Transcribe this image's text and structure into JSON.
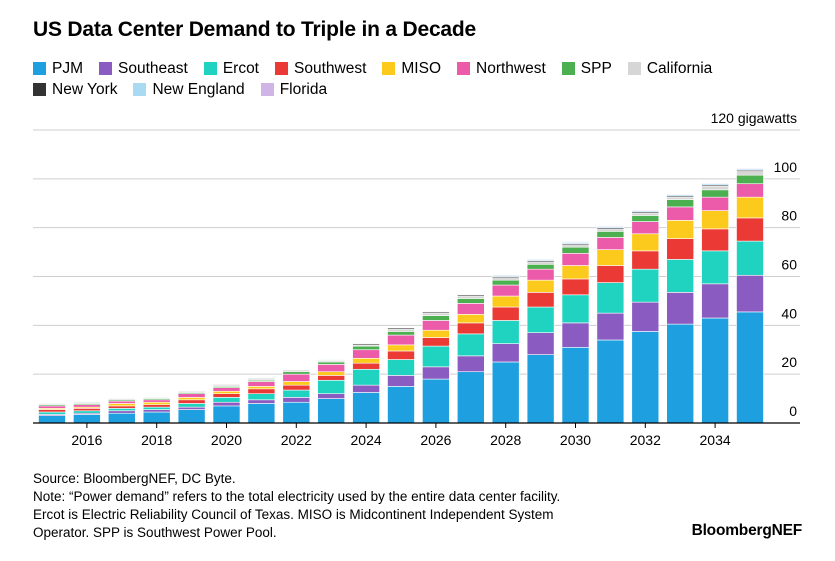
{
  "title": "US Data Center Demand to Triple in a Decade",
  "legend": {
    "items": [
      {
        "label": "PJM",
        "color": "#1e9fe0"
      },
      {
        "label": "Southeast",
        "color": "#8a5bc0"
      },
      {
        "label": "Ercot",
        "color": "#20d3c0"
      },
      {
        "label": "Southwest",
        "color": "#eb3a35"
      },
      {
        "label": "MISO",
        "color": "#fcca1c"
      },
      {
        "label": "Northwest",
        "color": "#ec5ba9"
      },
      {
        "label": "SPP",
        "color": "#4caf50"
      },
      {
        "label": "California",
        "color": "#d6d6d6"
      },
      {
        "label": "New York",
        "color": "#333333"
      },
      {
        "label": "New England",
        "color": "#a9daf2"
      },
      {
        "label": "Florida",
        "color": "#cfb5e6"
      }
    ]
  },
  "chart_data": {
    "type": "bar",
    "stacked": true,
    "unit_label": "120 gigawatts",
    "ylim": [
      0,
      120
    ],
    "yticks": [
      0,
      20,
      40,
      60,
      80,
      100
    ],
    "x": [
      2015,
      2016,
      2017,
      2018,
      2019,
      2020,
      2021,
      2022,
      2023,
      2024,
      2025,
      2026,
      2027,
      2028,
      2029,
      2030,
      2031,
      2032,
      2033,
      2034,
      2035
    ],
    "xtick_labels": [
      "2016",
      "2018",
      "2020",
      "2022",
      "2024",
      "2026",
      "2028",
      "2030",
      "2032",
      "2034"
    ],
    "series": [
      {
        "name": "PJM",
        "values": [
          3,
          3.5,
          4,
          4.5,
          5.5,
          7,
          8,
          8.5,
          10,
          12.5,
          15,
          18,
          21,
          25,
          28,
          31,
          34,
          37.5,
          40.5,
          43,
          45.5
        ]
      },
      {
        "name": "Southeast",
        "values": [
          0.5,
          0.5,
          1,
          1,
          1,
          1.5,
          1.5,
          2,
          2,
          3,
          4.5,
          5,
          6.5,
          7.5,
          9,
          10,
          11,
          12,
          13,
          14,
          15
        ]
      },
      {
        "name": "Ercot",
        "values": [
          1,
          1,
          1,
          1,
          1.5,
          2,
          2.5,
          3,
          5.5,
          6.5,
          6.5,
          8.5,
          9,
          9.5,
          10.5,
          11.5,
          12.5,
          13.5,
          13.5,
          13.5,
          14
        ]
      },
      {
        "name": "Southwest",
        "values": [
          1,
          1,
          1,
          1,
          1.5,
          1.5,
          2,
          2,
          2,
          2.5,
          3.5,
          3.5,
          4.5,
          5.5,
          6,
          6.5,
          7,
          7.5,
          8.5,
          9,
          9.5
        ]
      },
      {
        "name": "MISO",
        "values": [
          0.5,
          0.5,
          1,
          1,
          1,
          1,
          1,
          1.5,
          1.5,
          2,
          2.5,
          3,
          3.5,
          4.5,
          5,
          5.5,
          6.5,
          7,
          7.5,
          7.5,
          8.5
        ]
      },
      {
        "name": "Northwest",
        "values": [
          1,
          1,
          1,
          1,
          1.5,
          1.5,
          2,
          3,
          3,
          3.5,
          4,
          4,
          4.5,
          4.5,
          4.5,
          5,
          5,
          5,
          5.5,
          5.5,
          5.5
        ]
      },
      {
        "name": "SPP",
        "values": [
          0.5,
          0.5,
          0.5,
          0.5,
          0.5,
          0.5,
          0.5,
          1,
          1,
          1.5,
          1.5,
          2,
          2,
          2,
          2,
          2.5,
          2.5,
          2.5,
          3,
          3,
          3.5
        ]
      },
      {
        "name": "California",
        "values": [
          0.5,
          0.5,
          0.5,
          0.5,
          0.5,
          0.5,
          0.5,
          0.5,
          0.5,
          0.5,
          1,
          1,
          1,
          1,
          1,
          1,
          1,
          1,
          1,
          1.5,
          1.5
        ]
      },
      {
        "name": "New York",
        "values": [
          0.2,
          0.2,
          0.2,
          0.2,
          0.2,
          0.3,
          0.3,
          0.3,
          0.3,
          0.5,
          0.5,
          0.5,
          0.5,
          0.5,
          0.5,
          0.5,
          0.5,
          0.5,
          0.5,
          0.5,
          0.5
        ]
      },
      {
        "name": "New England",
        "values": [
          0.2,
          0.2,
          0.2,
          0.2,
          0.2,
          0.2,
          0.2,
          0.3,
          0.3,
          0.3,
          0.3,
          0.3,
          0.3,
          0.5,
          0.5,
          0.5,
          0.5,
          0.5,
          0.5,
          0.5,
          0.5
        ]
      },
      {
        "name": "Florida",
        "values": [
          0.1,
          0.1,
          0.1,
          0.1,
          0.1,
          0.1,
          0.2,
          0.2,
          0.2,
          0.2,
          0.2,
          0.2,
          0.2,
          0.2,
          0.3,
          0.3,
          0.3,
          0.3,
          0.3,
          0.3,
          0.3
        ]
      }
    ]
  },
  "footer": {
    "source": "Source: BloombergNEF, DC Byte.",
    "note1": "Note: “Power demand” refers to the total electricity used by the entire data center facility.",
    "note2": "Ercot is Electric Reliability Council of Texas. MISO is Midcontinent Independent System",
    "note3": "Operator. SPP is Southwest Power Pool."
  },
  "brand": "BloombergNEF"
}
